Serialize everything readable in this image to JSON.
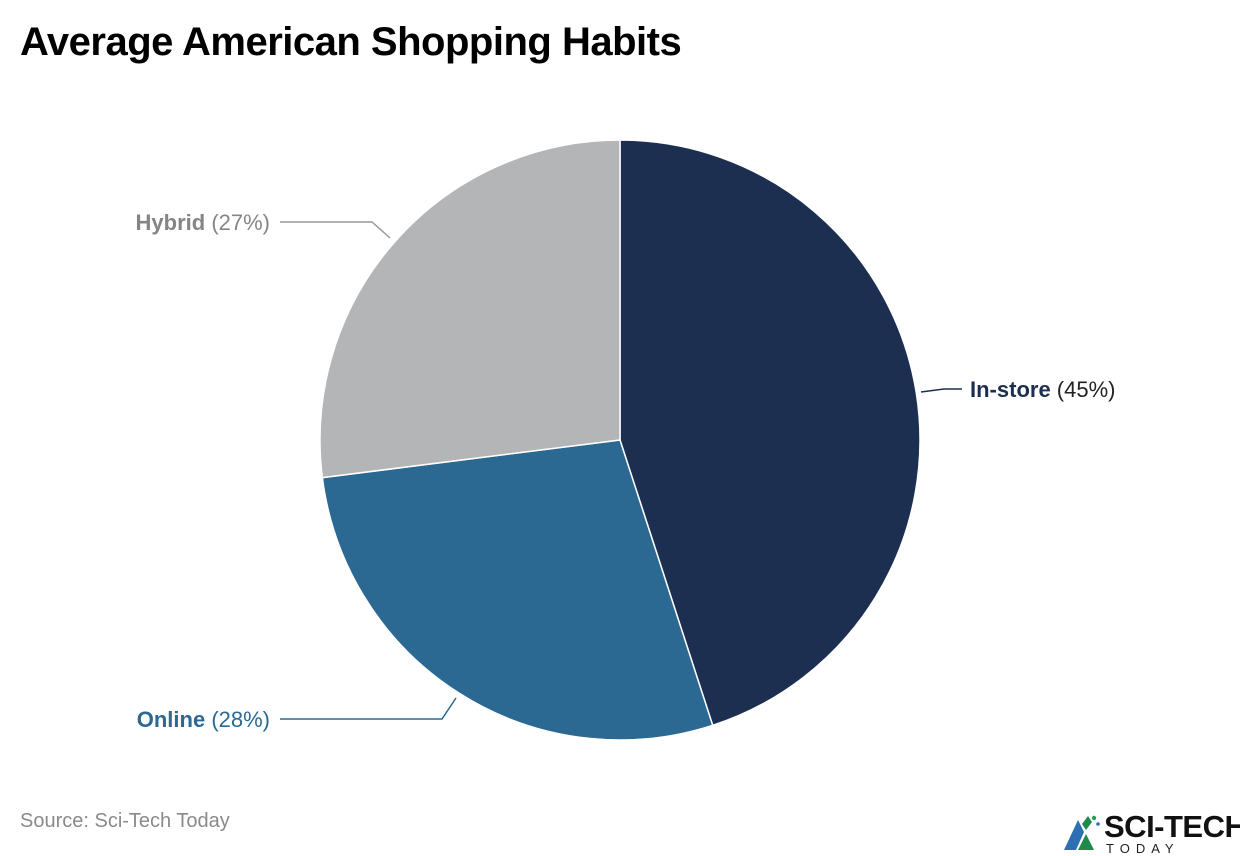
{
  "title": "Average American Shopping Habits",
  "source": "Source: Sci-Tech Today",
  "logo": {
    "main": "SCI-TECH",
    "sub": "TODAY"
  },
  "colors": {
    "in_store": "#1c2f50",
    "online": "#2b6892",
    "hybrid": "#b4b5b7",
    "hybrid_label": "#858585",
    "leader": "#666666"
  },
  "chart_data": {
    "type": "pie",
    "title": "Average American Shopping Habits",
    "slices": [
      {
        "label": "In-store",
        "value": 45,
        "display": "(45%)",
        "color": "#1c2f50"
      },
      {
        "label": "Online",
        "value": 28,
        "display": "(28%)",
        "color": "#2b6892"
      },
      {
        "label": "Hybrid",
        "value": 27,
        "display": "(27%)",
        "color": "#b4b5b7"
      }
    ],
    "start_angle_deg": 0,
    "direction": "clockwise",
    "legend": "none"
  }
}
